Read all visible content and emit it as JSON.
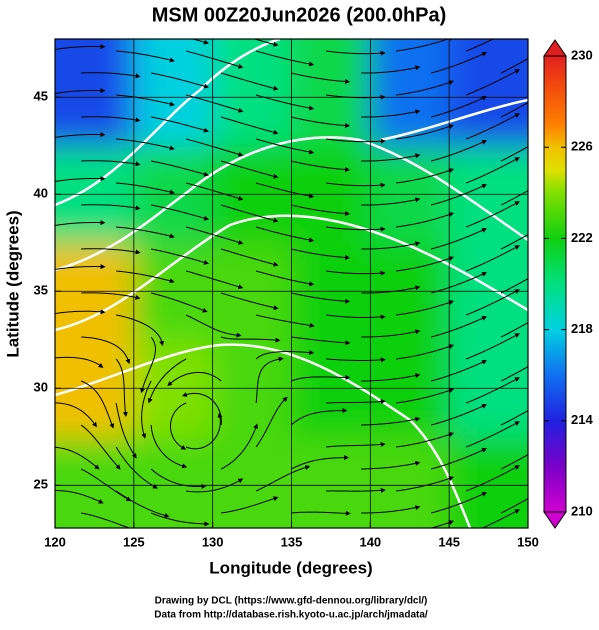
{
  "chart_data": {
    "type": "field",
    "title": "MSM 00Z20Jun2026 (200.0hPa)",
    "xlabel": "Longitude (degrees)",
    "ylabel": "Latitude  (degrees)",
    "footer": [
      "Drawing by DCL (https://www.gfd-dennou.org/library/dcl/)",
      "Data from http://database.rish.kyoto-u.ac.jp/arch/jmadata/"
    ],
    "xlim": [
      120,
      150
    ],
    "ylim": [
      22.8,
      48
    ],
    "xticks": [
      120,
      125,
      130,
      135,
      140,
      145,
      150
    ],
    "yticks": [
      25,
      30,
      35,
      40,
      45
    ],
    "grid": true,
    "lon_edges": [
      120,
      125,
      130,
      135,
      140,
      145,
      150
    ],
    "lat_edges": [
      22.8,
      27.5,
      32.5,
      37.5,
      42.5,
      48
    ],
    "values": [
      [
        223,
        223,
        223,
        223,
        223,
        222
      ],
      [
        226,
        224,
        223,
        222,
        222,
        220
      ],
      [
        226,
        223,
        223,
        222,
        222,
        220
      ],
      [
        220,
        221,
        222,
        222,
        221,
        220
      ],
      [
        215,
        218,
        220,
        221,
        216,
        215
      ]
    ],
    "colorbar": {
      "lim": [
        210,
        230
      ],
      "ticks": [
        210,
        214,
        218,
        222,
        226,
        230
      ],
      "colormap": [
        {
          "value": 210,
          "color": "#d000d0"
        },
        {
          "value": 212,
          "color": "#7a00c8"
        },
        {
          "value": 214,
          "color": "#2020e0"
        },
        {
          "value": 216,
          "color": "#1070f0"
        },
        {
          "value": 218,
          "color": "#00d0e0"
        },
        {
          "value": 220,
          "color": "#00e080"
        },
        {
          "value": 222,
          "color": "#10d010"
        },
        {
          "value": 224,
          "color": "#80e000"
        },
        {
          "value": 225,
          "color": "#e0e000"
        },
        {
          "value": 226,
          "color": "#f0c000"
        },
        {
          "value": 227,
          "color": "#ff8000"
        },
        {
          "value": 229,
          "color": "#f04010"
        },
        {
          "value": 230,
          "color": "#e02020"
        }
      ]
    }
  }
}
